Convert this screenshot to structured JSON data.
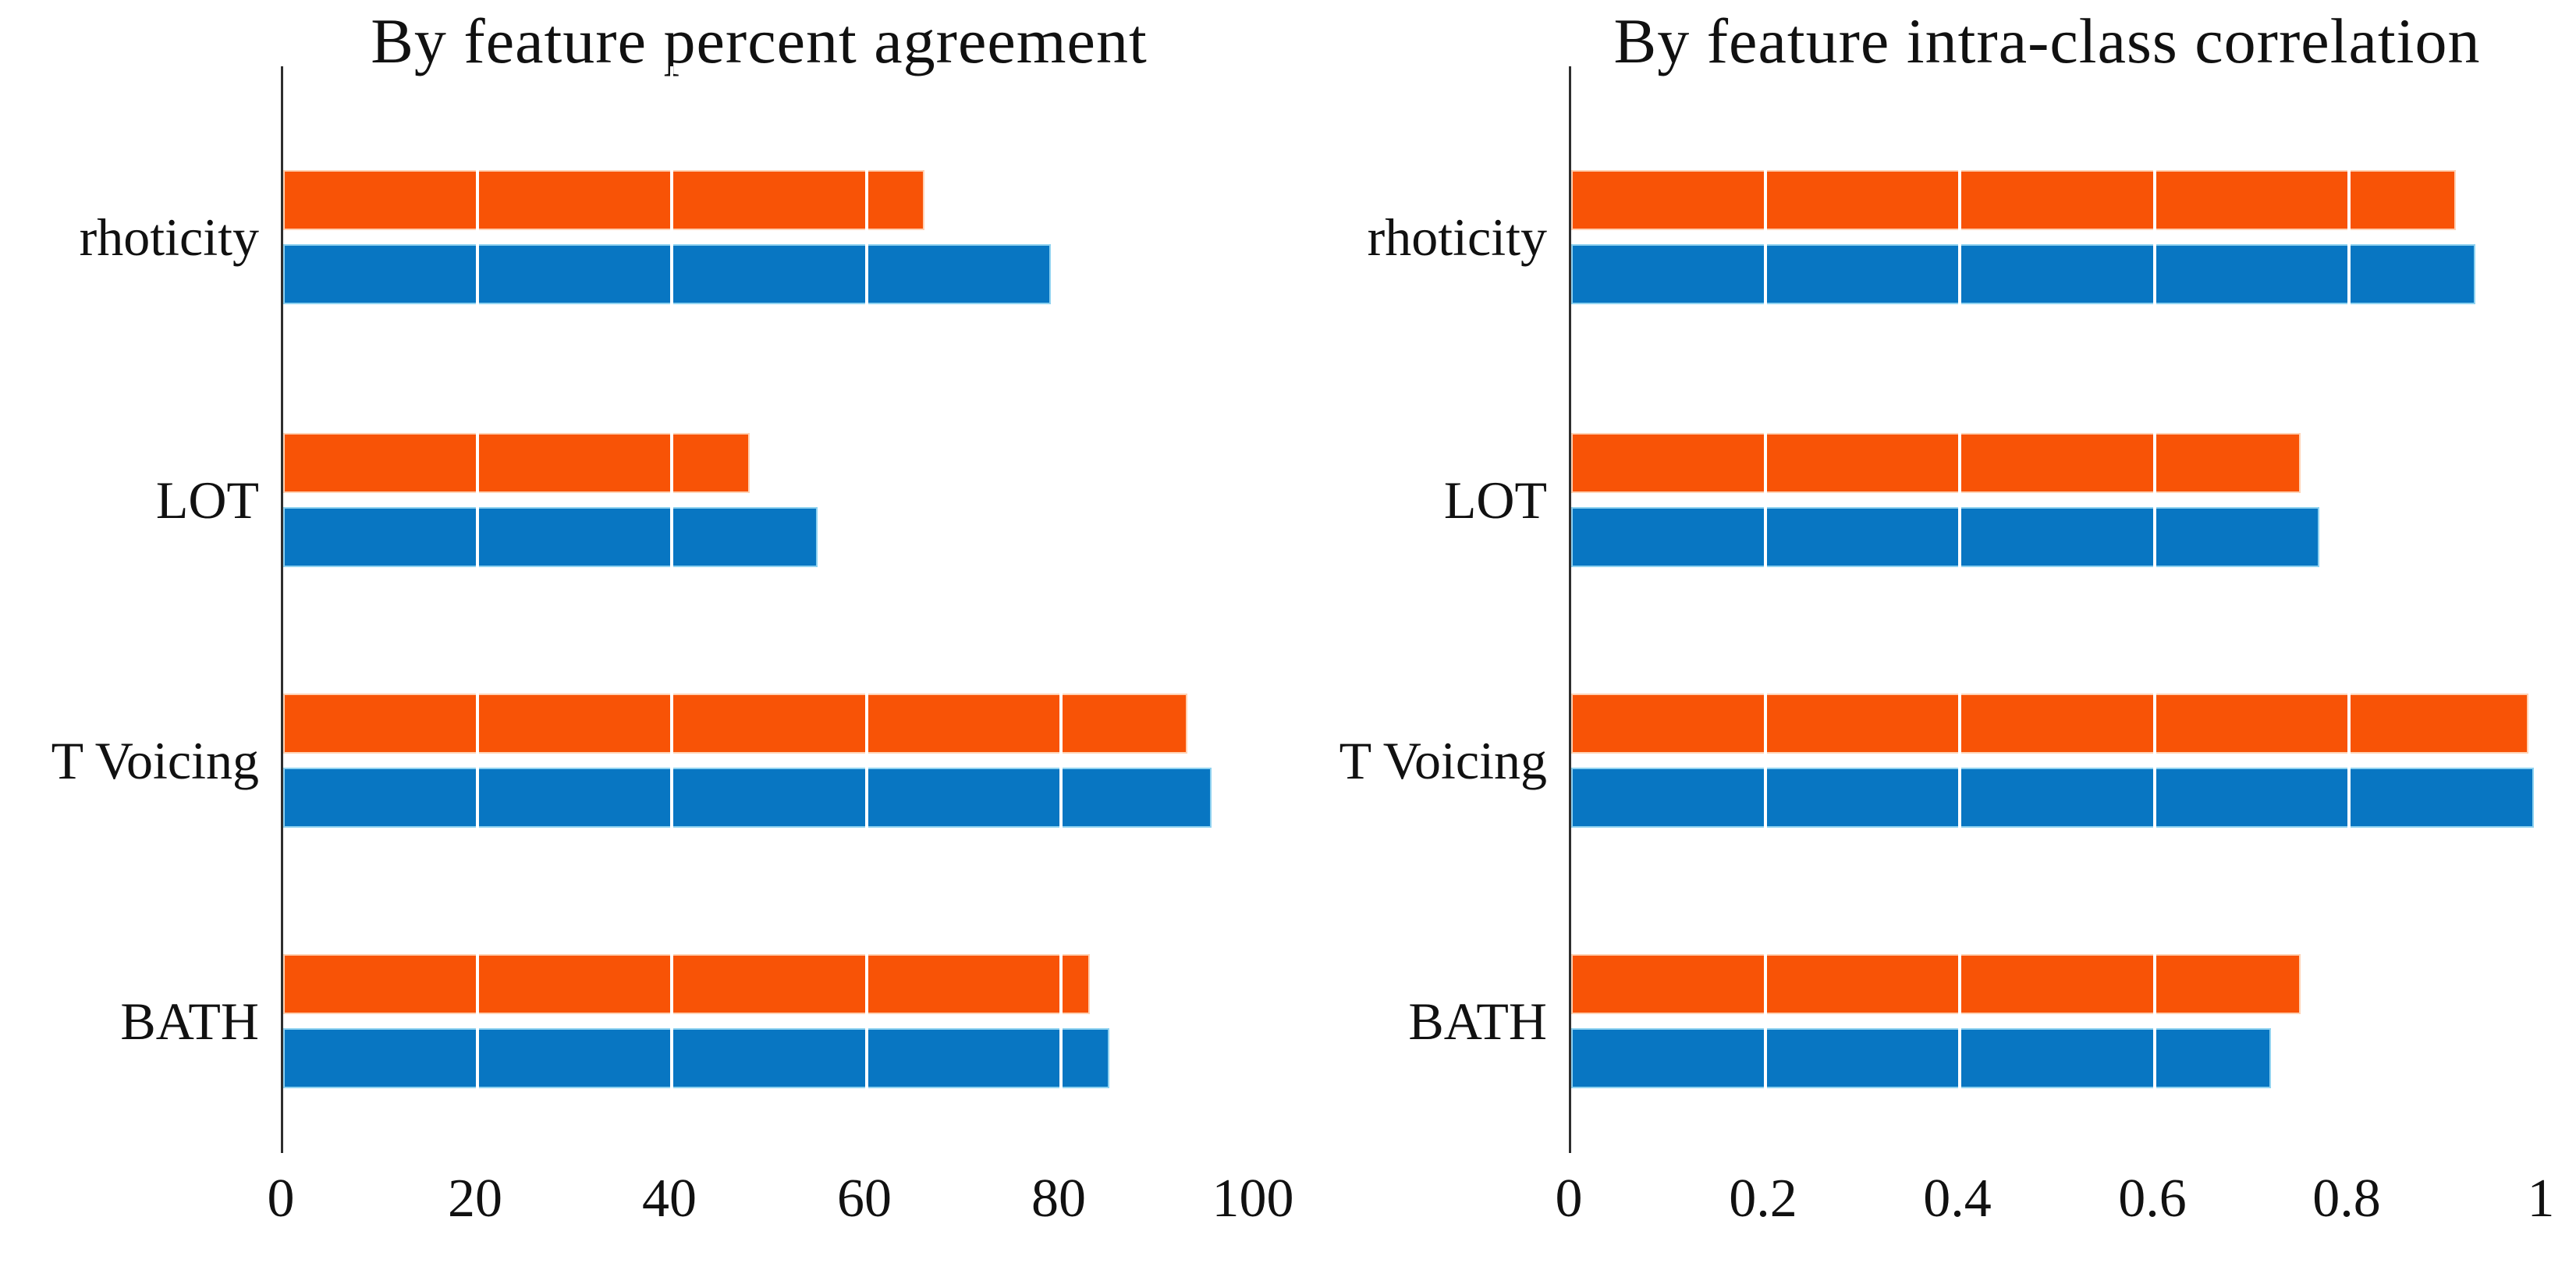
{
  "figure": {
    "background_color": "#ffffff",
    "text_color": "#111111",
    "axis_spine_color": "#2e2e2e",
    "gridline_color": "#ffffff"
  },
  "chart_data": [
    {
      "type": "bar",
      "orientation": "horizontal",
      "title": "By feature percent agreement",
      "categories": [
        "rhoticity",
        "LOT",
        "T Voicing",
        "BATH"
      ],
      "series": [
        {
          "name": "orange-series",
          "color": "#f85306",
          "edge_color": "#ffd2b4",
          "values": [
            66,
            48,
            93,
            83
          ]
        },
        {
          "name": "blue-series",
          "color": "#0876c2",
          "edge_color": "#8fd2f0",
          "values": [
            79,
            55,
            95.5,
            85
          ]
        }
      ],
      "xlim": [
        0,
        100
      ],
      "x_tick_labels": [
        "0",
        "20",
        "40",
        "60",
        "80",
        "100"
      ],
      "grid": "white vertical lines over bars at ticks",
      "legend": "none"
    },
    {
      "type": "bar",
      "orientation": "horizontal",
      "title": "By feature intra-class correlation",
      "categories": [
        "rhoticity",
        "LOT",
        "T Voicing",
        "BATH"
      ],
      "series": [
        {
          "name": "orange-series",
          "color": "#f85306",
          "edge_color": "#ffd2b4",
          "values": [
            0.91,
            0.75,
            0.985,
            0.75
          ]
        },
        {
          "name": "blue-series",
          "color": "#0876c2",
          "edge_color": "#8fd2f0",
          "values": [
            0.93,
            0.77,
            0.99,
            0.72
          ]
        }
      ],
      "xlim": [
        0,
        1
      ],
      "x_tick_labels": [
        "0",
        "0.2",
        "0.4",
        "0.6",
        "0.8",
        "1"
      ],
      "grid": "white vertical lines over bars at ticks",
      "legend": "none"
    }
  ]
}
